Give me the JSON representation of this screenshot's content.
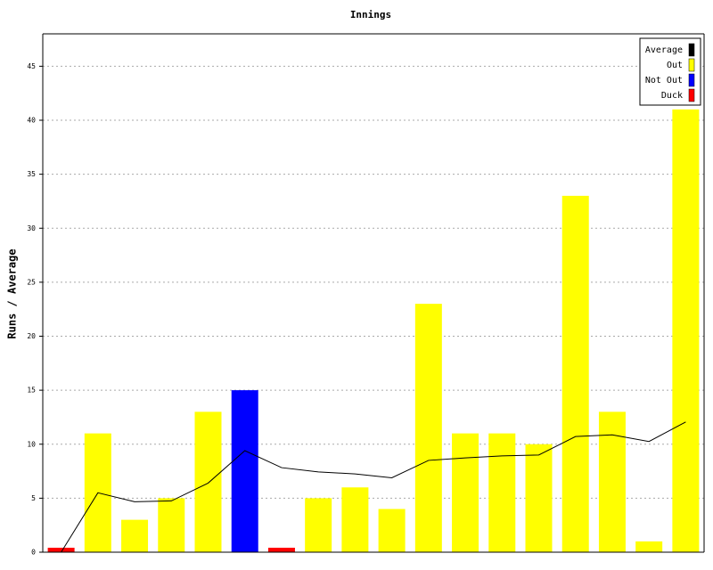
{
  "chart_data": {
    "type": "bar",
    "title": "Innings",
    "y_label": "Runs / Average",
    "ylim": [
      0,
      48
    ],
    "yticks": [
      0,
      5,
      10,
      15,
      20,
      25,
      30,
      35,
      40,
      45
    ],
    "grid": true,
    "legend": "top-right",
    "series": [
      {
        "name": "Average",
        "color": "#000000",
        "kind": "line",
        "values": [
          0,
          5.5,
          4.67,
          4.75,
          6.4,
          9.4,
          7.83,
          7.43,
          7.25,
          6.89,
          8.5,
          8.73,
          8.92,
          9.0,
          10.71,
          10.87,
          10.25,
          12.06
        ]
      },
      {
        "name": "Out",
        "color": "#ffff00",
        "kind": "bar",
        "values": [
          null,
          11,
          3,
          5,
          13,
          null,
          null,
          5,
          6,
          4,
          23,
          11,
          11,
          10,
          33,
          13,
          1,
          41
        ]
      },
      {
        "name": "Not Out",
        "color": "#0000ff",
        "kind": "bar",
        "values": [
          null,
          null,
          null,
          null,
          null,
          15,
          null,
          null,
          null,
          null,
          null,
          null,
          null,
          null,
          null,
          null,
          null,
          null
        ]
      },
      {
        "name": "Duck",
        "color": "#ff0000",
        "kind": "bar",
        "values": [
          0,
          null,
          null,
          null,
          null,
          null,
          0,
          null,
          null,
          null,
          null,
          null,
          null,
          null,
          null,
          null,
          null,
          null
        ]
      }
    ]
  }
}
